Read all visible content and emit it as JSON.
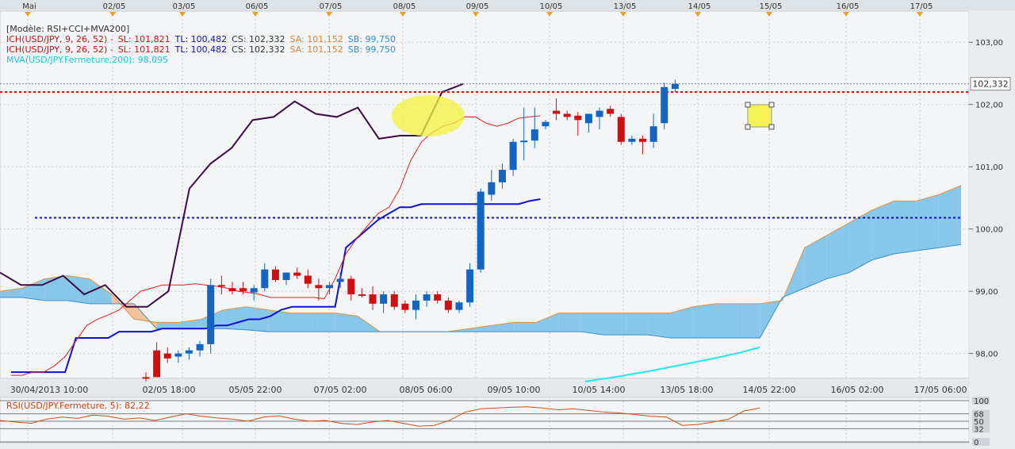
{
  "top_dates": [
    "Mai",
    "02/05",
    "03/05",
    "06/05",
    "07/05",
    "08/05",
    "09/05",
    "10/05",
    "13/05",
    "14/05",
    "15/05",
    "16/05",
    "17/05"
  ],
  "legend": {
    "model": "[Modèle: RSI+CCI+MVA200]",
    "ich1": {
      "name": "ICH(USD/JPY, 9, 26, 52) -",
      "sl": "SL: 101,821",
      "tl": "TL: 100,482",
      "cs": "CS: 102,332",
      "sa": "SA: 101,152",
      "sb": "SB: 99,750"
    },
    "ich2": {
      "name": "ICH(USD/JPY, 9, 26, 52) -",
      "sl": "SL: 101,821",
      "tl": "TL: 100,482",
      "cs": "CS: 102,332",
      "sa": "SA: 101,152",
      "sb": "SB: 99,750"
    },
    "mva": "MVA(USD/JPY.Fermeture,200): 98,095"
  },
  "price_axis": {
    "ticks": [
      "103,00",
      "102,00",
      "101,00",
      "100,00",
      "99,00",
      "98,00"
    ],
    "current": "102,332"
  },
  "bottom_dates": [
    "30/04/2013 10:00",
    "02/05 18:00",
    "05/05 22:00",
    "07/05 02:00",
    "08/05 06:00",
    "09/05 10:00",
    "10/05 14:00",
    "13/05 18:00",
    "14/05 22:00",
    "16/05 02:00",
    "17/05 06:00"
  ],
  "rsi": {
    "label": "RSI(USD/JPY.Fermeture, 5): 82,22",
    "ticks": [
      "100",
      "68",
      "50",
      "32",
      "0"
    ]
  },
  "colors": {
    "up": "#1565c0",
    "down": "#d01010",
    "cloud_bull": "#87c8ea",
    "cloud_bear": "#f3c39a",
    "lagging": "#3c0c47",
    "tenkan": "#e02020",
    "kijun": "#1010d0",
    "mva": "#20e8f0",
    "rsi": "#d05010"
  },
  "chart_data": {
    "type": "candlestick",
    "symbol": "USD/JPY",
    "ylim": [
      97.6,
      103.5
    ],
    "x_labels": [
      "30/04/2013 10:00",
      "02/05 18:00",
      "05/05 22:00",
      "07/05 02:00",
      "08/05 06:00",
      "09/05 10:00",
      "10/05 14:00",
      "13/05 18:00",
      "14/05 22:00",
      "16/05 02:00",
      "17/05 06:00"
    ],
    "ohlc": [
      [
        97.62,
        97.7,
        97.55,
        97.6
      ],
      [
        98.05,
        98.18,
        97.62,
        97.62
      ],
      [
        98.0,
        98.1,
        97.85,
        97.92
      ],
      [
        97.95,
        98.05,
        97.85,
        98.0
      ],
      [
        98.0,
        98.1,
        97.9,
        98.05
      ],
      [
        98.05,
        98.2,
        97.95,
        98.15
      ],
      [
        98.15,
        99.2,
        98.0,
        99.1
      ],
      [
        99.1,
        99.25,
        98.95,
        99.08
      ],
      [
        99.05,
        99.15,
        98.95,
        99.0
      ],
      [
        99.05,
        99.15,
        98.95,
        99.0
      ],
      [
        98.98,
        99.1,
        98.85,
        99.05
      ],
      [
        99.05,
        99.45,
        99.0,
        99.35
      ],
      [
        99.35,
        99.4,
        99.15,
        99.18
      ],
      [
        99.18,
        99.3,
        99.1,
        99.3
      ],
      [
        99.3,
        99.38,
        99.2,
        99.25
      ],
      [
        99.25,
        99.35,
        99.05,
        99.12
      ],
      [
        99.1,
        99.2,
        98.85,
        99.05
      ],
      [
        99.05,
        99.15,
        98.95,
        99.1
      ],
      [
        99.15,
        99.3,
        99.05,
        99.2
      ],
      [
        99.2,
        99.25,
        98.85,
        98.95
      ],
      [
        98.95,
        99.05,
        98.9,
        98.93
      ],
      [
        98.95,
        99.08,
        98.7,
        98.8
      ],
      [
        98.8,
        99.0,
        98.65,
        98.95
      ],
      [
        98.95,
        99.0,
        98.7,
        98.75
      ],
      [
        98.8,
        98.85,
        98.65,
        98.7
      ],
      [
        98.7,
        98.95,
        98.55,
        98.85
      ],
      [
        98.85,
        99.0,
        98.75,
        98.95
      ],
      [
        98.95,
        99.0,
        98.8,
        98.85
      ],
      [
        98.85,
        98.9,
        98.65,
        98.7
      ],
      [
        98.7,
        98.85,
        98.65,
        98.82
      ],
      [
        98.82,
        99.45,
        98.75,
        99.35
      ],
      [
        99.35,
        100.65,
        99.3,
        100.6
      ],
      [
        100.55,
        100.95,
        100.45,
        100.75
      ],
      [
        100.75,
        101.05,
        100.65,
        100.95
      ],
      [
        100.95,
        101.45,
        100.85,
        101.4
      ],
      [
        101.4,
        101.95,
        101.1,
        101.42
      ],
      [
        101.42,
        101.95,
        101.3,
        101.6
      ],
      [
        101.65,
        101.75,
        101.6,
        101.72
      ],
      [
        101.9,
        102.1,
        101.75,
        101.85
      ],
      [
        101.85,
        101.9,
        101.75,
        101.8
      ],
      [
        101.82,
        101.88,
        101.5,
        101.75
      ],
      [
        101.7,
        101.85,
        101.55,
        101.85
      ],
      [
        101.8,
        101.95,
        101.6,
        101.9
      ],
      [
        101.93,
        101.98,
        101.8,
        101.85
      ],
      [
        101.8,
        101.85,
        101.35,
        101.4
      ],
      [
        101.4,
        101.5,
        101.35,
        101.45
      ],
      [
        101.45,
        101.5,
        101.2,
        101.4
      ],
      [
        101.4,
        101.85,
        101.3,
        101.65
      ],
      [
        101.7,
        102.35,
        101.6,
        102.28
      ],
      [
        102.25,
        102.4,
        102.2,
        102.33
      ]
    ],
    "tenkan_sen": [
      97.65,
      97.65,
      97.7,
      97.7,
      97.8,
      97.95,
      98.2,
      98.45,
      98.55,
      98.62,
      98.7,
      98.85,
      99.0,
      99.05,
      99.1,
      99.1,
      99.1,
      99.12,
      99.1,
      99.08,
      99.05,
      99.0,
      98.98,
      98.95,
      98.9,
      98.9,
      98.9,
      98.9,
      98.9,
      98.88,
      99.2,
      99.6,
      99.85,
      100.05,
      100.25,
      100.35,
      100.65,
      101.1,
      101.4,
      101.55,
      101.65,
      101.7,
      101.8,
      101.8,
      101.7,
      101.65,
      101.7,
      101.78,
      101.8,
      101.82
    ],
    "kijun_sen": [
      97.7,
      97.7,
      97.7,
      97.7,
      97.7,
      97.7,
      98.25,
      98.25,
      98.25,
      98.25,
      98.35,
      98.35,
      98.35,
      98.35,
      98.4,
      98.4,
      98.4,
      98.4,
      98.4,
      98.45,
      98.45,
      98.5,
      98.55,
      98.55,
      98.6,
      98.7,
      98.75,
      98.75,
      98.75,
      98.75,
      98.75,
      99.7,
      99.85,
      100.0,
      100.15,
      100.25,
      100.35,
      100.35,
      100.4,
      100.4,
      100.4,
      100.4,
      100.4,
      100.4,
      100.4,
      100.4,
      100.4,
      100.4,
      100.45,
      100.48
    ],
    "chikou_span": [
      99.3,
      99.1,
      99.1,
      99.25,
      98.95,
      99.1,
      98.75,
      98.75,
      99.0,
      100.65,
      101.05,
      101.3,
      101.75,
      101.8,
      102.05,
      101.85,
      101.8,
      101.95,
      101.45,
      101.5,
      101.5,
      102.2,
      102.33
    ],
    "senkou_a": [
      99.0,
      99.05,
      99.2,
      99.25,
      99.2,
      98.95,
      98.55,
      98.5,
      98.5,
      98.55,
      98.7,
      98.75,
      98.7,
      98.65,
      98.65,
      98.65,
      98.6,
      98.35,
      98.35,
      98.35,
      98.35,
      98.4,
      98.45,
      98.5,
      98.5,
      98.65,
      98.65,
      98.65,
      98.65,
      98.65,
      98.65,
      98.75,
      98.8,
      98.8,
      98.8,
      98.85,
      99.7,
      99.9,
      100.1,
      100.3,
      100.45,
      100.45,
      100.55,
      100.7
    ],
    "senkou_b": [
      98.9,
      98.9,
      98.85,
      98.85,
      98.8,
      98.8,
      98.8,
      98.4,
      98.4,
      98.4,
      98.4,
      98.38,
      98.35,
      98.35,
      98.35,
      98.35,
      98.35,
      98.35,
      98.35,
      98.35,
      98.35,
      98.35,
      98.35,
      98.35,
      98.35,
      98.35,
      98.35,
      98.3,
      98.3,
      98.3,
      98.25,
      98.25,
      98.25,
      98.25,
      98.25,
      98.9,
      99.05,
      99.2,
      99.3,
      99.5,
      99.6,
      99.65,
      99.7,
      99.75
    ],
    "mva200": [
      97.55,
      97.63,
      97.72,
      97.82,
      97.92,
      98.02,
      98.1
    ],
    "horizontal_levels": [
      102.332,
      100.18,
      102.2
    ],
    "rsi": [
      52,
      48,
      45,
      55,
      60,
      57,
      65,
      62,
      55,
      58,
      52,
      60,
      68,
      62,
      58,
      55,
      50,
      60,
      63,
      55,
      50,
      52,
      45,
      42,
      48,
      52,
      45,
      38,
      40,
      52,
      72,
      80,
      82,
      84,
      85,
      82,
      78,
      80,
      76,
      72,
      70,
      66,
      62,
      60,
      40,
      42,
      48,
      55,
      75,
      82
    ]
  }
}
